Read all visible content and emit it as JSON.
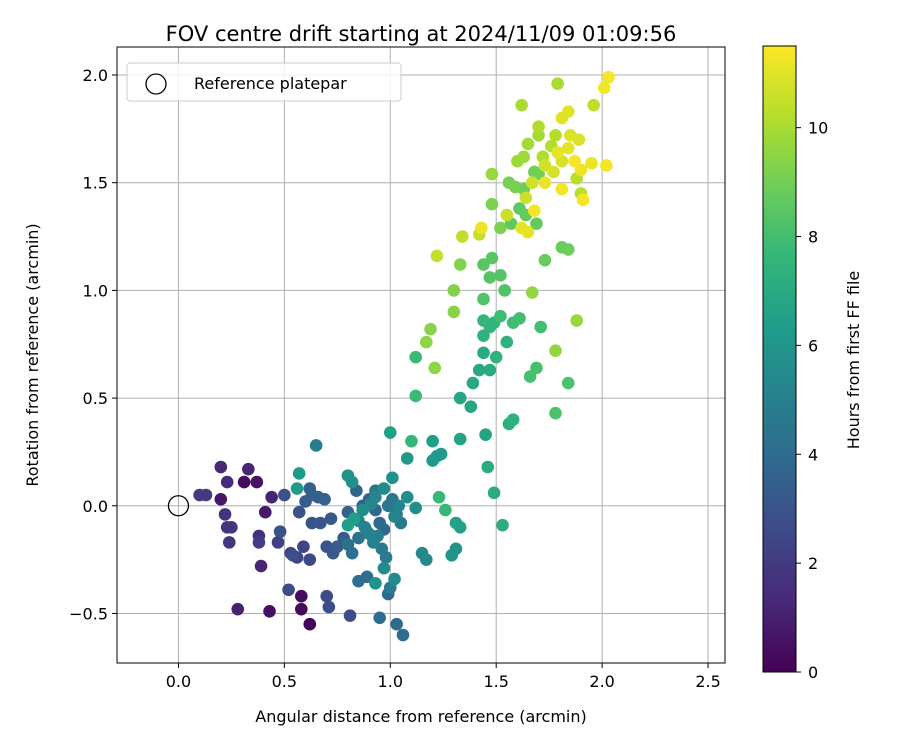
{
  "chart_data": {
    "type": "scatter",
    "title": "FOV centre drift starting at 2024/11/09 01:09:56",
    "xlabel": "Angular distance from reference (arcmin)",
    "ylabel": "Rotation from reference (arcmin)",
    "xlim": [
      -0.29,
      2.58
    ],
    "ylim": [
      -0.73,
      2.13
    ],
    "xticks": [
      0.0,
      0.5,
      1.0,
      1.5,
      2.0,
      2.5
    ],
    "xtick_labels": [
      "0.0",
      "0.5",
      "1.0",
      "1.5",
      "2.0",
      "2.5"
    ],
    "yticks": [
      -0.5,
      0.0,
      0.5,
      1.0,
      1.5,
      2.0
    ],
    "ytick_labels": [
      "−0.5",
      "0.0",
      "0.5",
      "1.0",
      "1.5",
      "2.0"
    ],
    "grid": true,
    "legend": {
      "placement": "upper-left",
      "entries": [
        "Reference platepar"
      ]
    },
    "reference_point": {
      "x": 0.0,
      "y": 0.0,
      "label": "Reference platepar"
    },
    "colorbar": {
      "label": "Hours from first FF file",
      "colormap": "viridis",
      "range": [
        0,
        11.5
      ],
      "ticks": [
        0,
        2,
        4,
        6,
        8,
        10
      ],
      "tick_labels": [
        "0",
        "2",
        "4",
        "6",
        "8",
        "10"
      ]
    },
    "points": [
      {
        "x": 0.62,
        "y": -0.55,
        "h": 0.1
      },
      {
        "x": 0.58,
        "y": -0.48,
        "h": 0.3
      },
      {
        "x": 0.58,
        "y": -0.42,
        "h": 0.4
      },
      {
        "x": 0.43,
        "y": -0.49,
        "h": 0.5
      },
      {
        "x": 0.31,
        "y": 0.11,
        "h": 0.4
      },
      {
        "x": 0.37,
        "y": 0.11,
        "h": 0.6
      },
      {
        "x": 0.41,
        "y": -0.03,
        "h": 0.8
      },
      {
        "x": 0.2,
        "y": 0.03,
        "h": 0.7
      },
      {
        "x": 0.28,
        "y": -0.48,
        "h": 1.0
      },
      {
        "x": 0.39,
        "y": -0.28,
        "h": 1.2
      },
      {
        "x": 0.44,
        "y": 0.04,
        "h": 1.1
      },
      {
        "x": 0.2,
        "y": 0.18,
        "h": 1.3
      },
      {
        "x": 0.33,
        "y": 0.17,
        "h": 1.2
      },
      {
        "x": 0.23,
        "y": 0.11,
        "h": 1.4
      },
      {
        "x": 0.38,
        "y": -0.14,
        "h": 1.6
      },
      {
        "x": 0.22,
        "y": -0.04,
        "h": 1.7
      },
      {
        "x": 0.23,
        "y": -0.1,
        "h": 1.8
      },
      {
        "x": 0.25,
        "y": -0.1,
        "h": 1.8
      },
      {
        "x": 0.24,
        "y": -0.17,
        "h": 1.9
      },
      {
        "x": 0.1,
        "y": 0.05,
        "h": 2.0
      },
      {
        "x": 0.13,
        "y": 0.05,
        "h": 2.0
      },
      {
        "x": 0.38,
        "y": -0.17,
        "h": 2.1
      },
      {
        "x": 0.47,
        "y": -0.17,
        "h": 2.2
      },
      {
        "x": 0.53,
        "y": -0.22,
        "h": 2.3
      },
      {
        "x": 0.56,
        "y": -0.24,
        "h": 2.4
      },
      {
        "x": 0.59,
        "y": -0.19,
        "h": 2.4
      },
      {
        "x": 0.62,
        "y": -0.25,
        "h": 2.5
      },
      {
        "x": 0.52,
        "y": -0.39,
        "h": 2.6
      },
      {
        "x": 0.7,
        "y": -0.42,
        "h": 2.6
      },
      {
        "x": 0.71,
        "y": -0.47,
        "h": 2.7
      },
      {
        "x": 0.81,
        "y": -0.51,
        "h": 2.7
      },
      {
        "x": 0.54,
        "y": -0.23,
        "h": 2.8
      },
      {
        "x": 0.48,
        "y": -0.12,
        "h": 2.9
      },
      {
        "x": 0.5,
        "y": 0.05,
        "h": 2.9
      },
      {
        "x": 0.57,
        "y": -0.03,
        "h": 3.0
      },
      {
        "x": 0.63,
        "y": -0.08,
        "h": 3.0
      },
      {
        "x": 0.67,
        "y": -0.08,
        "h": 3.1
      },
      {
        "x": 0.7,
        "y": -0.19,
        "h": 3.1
      },
      {
        "x": 0.73,
        "y": -0.22,
        "h": 3.2
      },
      {
        "x": 0.72,
        "y": -0.06,
        "h": 3.2
      },
      {
        "x": 0.75,
        "y": -0.19,
        "h": 3.3
      },
      {
        "x": 0.78,
        "y": -0.15,
        "h": 3.3
      },
      {
        "x": 0.6,
        "y": 0.02,
        "h": 3.4
      },
      {
        "x": 0.63,
        "y": 0.05,
        "h": 3.4
      },
      {
        "x": 0.66,
        "y": 0.04,
        "h": 3.5
      },
      {
        "x": 0.69,
        "y": 0.03,
        "h": 3.5
      },
      {
        "x": 0.62,
        "y": 0.08,
        "h": 3.6
      },
      {
        "x": 0.8,
        "y": -0.03,
        "h": 3.6
      },
      {
        "x": 0.84,
        "y": 0.07,
        "h": 3.7
      },
      {
        "x": 0.87,
        "y": 0.0,
        "h": 3.7
      },
      {
        "x": 0.9,
        "y": 0.03,
        "h": 3.8
      },
      {
        "x": 0.93,
        "y": -0.02,
        "h": 3.8
      },
      {
        "x": 0.95,
        "y": -0.08,
        "h": 3.9
      },
      {
        "x": 0.97,
        "y": -0.11,
        "h": 3.9
      },
      {
        "x": 0.99,
        "y": -0.41,
        "h": 4.0
      },
      {
        "x": 1.03,
        "y": -0.55,
        "h": 4.0
      },
      {
        "x": 1.06,
        "y": -0.6,
        "h": 4.1
      },
      {
        "x": 0.95,
        "y": -0.52,
        "h": 4.1
      },
      {
        "x": 0.85,
        "y": -0.35,
        "h": 4.2
      },
      {
        "x": 0.89,
        "y": -0.33,
        "h": 4.2
      },
      {
        "x": 0.82,
        "y": -0.22,
        "h": 4.3
      },
      {
        "x": 0.8,
        "y": -0.18,
        "h": 4.3
      },
      {
        "x": 0.85,
        "y": -0.15,
        "h": 4.4
      },
      {
        "x": 0.89,
        "y": -0.12,
        "h": 4.4
      },
      {
        "x": 0.99,
        "y": 0.0,
        "h": 4.5
      },
      {
        "x": 1.01,
        "y": 0.03,
        "h": 4.5
      },
      {
        "x": 1.03,
        "y": -0.04,
        "h": 4.6
      },
      {
        "x": 1.05,
        "y": -0.08,
        "h": 4.6
      },
      {
        "x": 0.93,
        "y": 0.07,
        "h": 4.7
      },
      {
        "x": 0.96,
        "y": -0.2,
        "h": 4.7
      },
      {
        "x": 0.98,
        "y": -0.24,
        "h": 4.8
      },
      {
        "x": 1.0,
        "y": -0.38,
        "h": 4.8
      },
      {
        "x": 0.65,
        "y": 0.28,
        "h": 4.9
      },
      {
        "x": 0.94,
        "y": -0.14,
        "h": 4.9
      },
      {
        "x": 0.92,
        "y": -0.17,
        "h": 5.0
      },
      {
        "x": 0.85,
        "y": -0.07,
        "h": 5.0
      },
      {
        "x": 0.88,
        "y": -0.1,
        "h": 5.1
      },
      {
        "x": 0.9,
        "y": -0.13,
        "h": 5.1
      },
      {
        "x": 1.02,
        "y": -0.05,
        "h": 5.2
      },
      {
        "x": 1.04,
        "y": 0.0,
        "h": 5.2
      },
      {
        "x": 0.91,
        "y": 0.01,
        "h": 5.3
      },
      {
        "x": 0.93,
        "y": 0.04,
        "h": 5.3
      },
      {
        "x": 1.15,
        "y": -0.22,
        "h": 5.4
      },
      {
        "x": 1.17,
        "y": -0.25,
        "h": 5.4
      },
      {
        "x": 1.02,
        "y": -0.34,
        "h": 5.5
      },
      {
        "x": 0.97,
        "y": -0.29,
        "h": 5.5
      },
      {
        "x": 0.87,
        "y": -0.02,
        "h": 5.6
      },
      {
        "x": 0.97,
        "y": 0.08,
        "h": 5.6
      },
      {
        "x": 1.08,
        "y": 0.04,
        "h": 5.7
      },
      {
        "x": 1.12,
        "y": -0.01,
        "h": 5.7
      },
      {
        "x": 0.8,
        "y": 0.14,
        "h": 5.8
      },
      {
        "x": 0.82,
        "y": 0.11,
        "h": 5.8
      },
      {
        "x": 0.93,
        "y": -0.36,
        "h": 5.9
      },
      {
        "x": 1.01,
        "y": 0.13,
        "h": 5.9
      },
      {
        "x": 1.29,
        "y": -0.23,
        "h": 6.0
      },
      {
        "x": 1.31,
        "y": -0.2,
        "h": 6.0
      },
      {
        "x": 1.08,
        "y": 0.22,
        "h": 6.1
      },
      {
        "x": 1.2,
        "y": 0.21,
        "h": 6.1
      },
      {
        "x": 1.22,
        "y": 0.23,
        "h": 6.2
      },
      {
        "x": 1.24,
        "y": 0.24,
        "h": 6.2
      },
      {
        "x": 0.57,
        "y": 0.15,
        "h": 6.3
      },
      {
        "x": 0.56,
        "y": 0.08,
        "h": 6.3
      },
      {
        "x": 0.8,
        "y": -0.09,
        "h": 6.4
      },
      {
        "x": 0.83,
        "y": -0.06,
        "h": 6.4
      },
      {
        "x": 1.0,
        "y": 0.34,
        "h": 6.5
      },
      {
        "x": 1.2,
        "y": 0.3,
        "h": 6.5
      },
      {
        "x": 1.31,
        "y": -0.08,
        "h": 6.6
      },
      {
        "x": 1.33,
        "y": -0.1,
        "h": 6.6
      },
      {
        "x": 1.33,
        "y": 0.31,
        "h": 6.7
      },
      {
        "x": 1.45,
        "y": 0.33,
        "h": 6.7
      },
      {
        "x": 1.33,
        "y": 0.5,
        "h": 6.8
      },
      {
        "x": 1.38,
        "y": 0.46,
        "h": 6.8
      },
      {
        "x": 1.39,
        "y": 0.57,
        "h": 6.9
      },
      {
        "x": 1.42,
        "y": 0.63,
        "h": 6.9
      },
      {
        "x": 1.47,
        "y": 0.63,
        "h": 7.0
      },
      {
        "x": 1.44,
        "y": 0.71,
        "h": 7.0
      },
      {
        "x": 1.49,
        "y": 0.06,
        "h": 7.1
      },
      {
        "x": 1.46,
        "y": 0.18,
        "h": 7.1
      },
      {
        "x": 1.53,
        "y": -0.09,
        "h": 7.2
      },
      {
        "x": 1.56,
        "y": 0.38,
        "h": 7.2
      },
      {
        "x": 1.58,
        "y": 0.4,
        "h": 7.3
      },
      {
        "x": 1.55,
        "y": 0.76,
        "h": 7.3
      },
      {
        "x": 1.5,
        "y": 0.69,
        "h": 7.4
      },
      {
        "x": 1.44,
        "y": 0.79,
        "h": 7.4
      },
      {
        "x": 1.47,
        "y": 0.83,
        "h": 7.5
      },
      {
        "x": 1.49,
        "y": 0.85,
        "h": 7.5
      },
      {
        "x": 1.44,
        "y": 0.86,
        "h": 7.6
      },
      {
        "x": 1.1,
        "y": 0.3,
        "h": 7.6
      },
      {
        "x": 1.26,
        "y": -0.02,
        "h": 7.7
      },
      {
        "x": 1.23,
        "y": 0.04,
        "h": 7.7
      },
      {
        "x": 1.12,
        "y": 0.51,
        "h": 7.8
      },
      {
        "x": 1.12,
        "y": 0.69,
        "h": 7.8
      },
      {
        "x": 1.52,
        "y": 0.88,
        "h": 7.9
      },
      {
        "x": 1.58,
        "y": 0.85,
        "h": 7.9
      },
      {
        "x": 1.61,
        "y": 0.87,
        "h": 8.0
      },
      {
        "x": 1.71,
        "y": 0.83,
        "h": 8.0
      },
      {
        "x": 1.69,
        "y": 0.64,
        "h": 8.1
      },
      {
        "x": 1.66,
        "y": 0.6,
        "h": 8.1
      },
      {
        "x": 1.78,
        "y": 0.43,
        "h": 8.2
      },
      {
        "x": 1.84,
        "y": 0.57,
        "h": 8.2
      },
      {
        "x": 1.44,
        "y": 0.96,
        "h": 8.3
      },
      {
        "x": 1.54,
        "y": 1.0,
        "h": 8.3
      },
      {
        "x": 1.47,
        "y": 1.06,
        "h": 8.4
      },
      {
        "x": 1.52,
        "y": 1.07,
        "h": 8.4
      },
      {
        "x": 1.44,
        "y": 1.12,
        "h": 8.5
      },
      {
        "x": 1.48,
        "y": 1.15,
        "h": 8.5
      },
      {
        "x": 1.57,
        "y": 1.31,
        "h": 8.6
      },
      {
        "x": 1.61,
        "y": 1.38,
        "h": 8.6
      },
      {
        "x": 1.64,
        "y": 1.35,
        "h": 8.7
      },
      {
        "x": 1.69,
        "y": 1.31,
        "h": 8.7
      },
      {
        "x": 1.73,
        "y": 1.14,
        "h": 8.8
      },
      {
        "x": 1.81,
        "y": 1.2,
        "h": 8.8
      },
      {
        "x": 1.84,
        "y": 1.19,
        "h": 8.9
      },
      {
        "x": 1.63,
        "y": 1.47,
        "h": 8.9
      },
      {
        "x": 1.68,
        "y": 1.55,
        "h": 9.0
      },
      {
        "x": 1.7,
        "y": 1.54,
        "h": 9.0
      },
      {
        "x": 1.56,
        "y": 1.5,
        "h": 9.1
      },
      {
        "x": 1.59,
        "y": 1.48,
        "h": 9.1
      },
      {
        "x": 1.48,
        "y": 1.4,
        "h": 9.2
      },
      {
        "x": 1.52,
        "y": 1.29,
        "h": 9.2
      },
      {
        "x": 1.33,
        "y": 1.12,
        "h": 9.3
      },
      {
        "x": 1.3,
        "y": 1.0,
        "h": 9.3
      },
      {
        "x": 1.3,
        "y": 0.9,
        "h": 9.4
      },
      {
        "x": 1.19,
        "y": 0.82,
        "h": 9.4
      },
      {
        "x": 1.17,
        "y": 0.76,
        "h": 9.5
      },
      {
        "x": 1.21,
        "y": 0.64,
        "h": 9.5
      },
      {
        "x": 1.67,
        "y": 0.99,
        "h": 9.6
      },
      {
        "x": 1.78,
        "y": 0.72,
        "h": 9.6
      },
      {
        "x": 1.88,
        "y": 0.86,
        "h": 9.7
      },
      {
        "x": 1.48,
        "y": 1.54,
        "h": 9.7
      },
      {
        "x": 1.6,
        "y": 1.6,
        "h": 9.8
      },
      {
        "x": 1.63,
        "y": 1.62,
        "h": 9.8
      },
      {
        "x": 1.65,
        "y": 1.68,
        "h": 9.9
      },
      {
        "x": 1.7,
        "y": 1.72,
        "h": 9.9
      },
      {
        "x": 1.62,
        "y": 1.86,
        "h": 10.0
      },
      {
        "x": 1.79,
        "y": 1.96,
        "h": 10.0
      },
      {
        "x": 1.7,
        "y": 1.76,
        "h": 10.1
      },
      {
        "x": 1.72,
        "y": 1.62,
        "h": 10.1
      },
      {
        "x": 1.76,
        "y": 1.67,
        "h": 10.2
      },
      {
        "x": 1.78,
        "y": 1.72,
        "h": 10.2
      },
      {
        "x": 1.88,
        "y": 1.52,
        "h": 10.3
      },
      {
        "x": 1.9,
        "y": 1.45,
        "h": 10.3
      },
      {
        "x": 1.96,
        "y": 1.86,
        "h": 10.4
      },
      {
        "x": 1.34,
        "y": 1.25,
        "h": 10.4
      },
      {
        "x": 1.42,
        "y": 1.26,
        "h": 10.5
      },
      {
        "x": 1.22,
        "y": 1.16,
        "h": 10.5
      },
      {
        "x": 1.55,
        "y": 1.35,
        "h": 10.6
      },
      {
        "x": 1.64,
        "y": 1.43,
        "h": 10.6
      },
      {
        "x": 1.67,
        "y": 1.5,
        "h": 10.7
      },
      {
        "x": 1.73,
        "y": 1.58,
        "h": 10.7
      },
      {
        "x": 1.77,
        "y": 1.55,
        "h": 10.8
      },
      {
        "x": 1.81,
        "y": 1.6,
        "h": 10.8
      },
      {
        "x": 1.85,
        "y": 1.72,
        "h": 10.9
      },
      {
        "x": 1.89,
        "y": 1.7,
        "h": 10.9
      },
      {
        "x": 1.81,
        "y": 1.8,
        "h": 11.0
      },
      {
        "x": 1.84,
        "y": 1.83,
        "h": 11.0
      },
      {
        "x": 1.79,
        "y": 1.64,
        "h": 11.1
      },
      {
        "x": 1.84,
        "y": 1.66,
        "h": 11.1
      },
      {
        "x": 1.9,
        "y": 1.56,
        "h": 11.2
      },
      {
        "x": 1.95,
        "y": 1.59,
        "h": 11.2
      },
      {
        "x": 2.01,
        "y": 1.94,
        "h": 11.3
      },
      {
        "x": 2.03,
        "y": 1.99,
        "h": 11.3
      },
      {
        "x": 2.02,
        "y": 1.58,
        "h": 11.4
      },
      {
        "x": 1.87,
        "y": 1.6,
        "h": 11.4
      },
      {
        "x": 1.91,
        "y": 1.42,
        "h": 11.4
      },
      {
        "x": 1.81,
        "y": 1.47,
        "h": 11.3
      },
      {
        "x": 1.68,
        "y": 1.37,
        "h": 11.3
      },
      {
        "x": 1.73,
        "y": 1.5,
        "h": 11.2
      },
      {
        "x": 1.43,
        "y": 1.29,
        "h": 11.2
      },
      {
        "x": 1.62,
        "y": 1.29,
        "h": 11.1
      },
      {
        "x": 1.65,
        "y": 1.27,
        "h": 11.1
      }
    ]
  }
}
